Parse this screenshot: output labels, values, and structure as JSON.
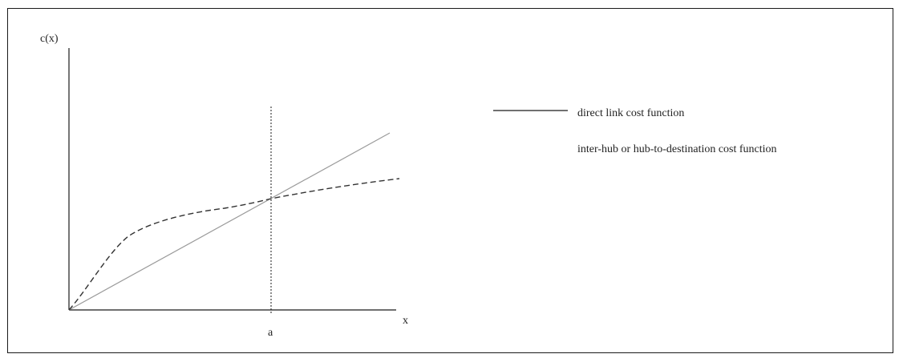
{
  "diagram": {
    "y_axis_label": "c(x)",
    "x_axis_label": "x",
    "threshold_label": "a",
    "legend": {
      "items": [
        {
          "label": "direct link cost function",
          "style": "solid"
        },
        {
          "label": "inter-hub or hub-to-destination cost function",
          "style": "dashed"
        }
      ]
    },
    "colors": {
      "axis": "#1a1a1a",
      "direct_link_curve": "#9a9a9a",
      "hub_curve": "#333333",
      "threshold_line": "#1a1a1a"
    }
  }
}
